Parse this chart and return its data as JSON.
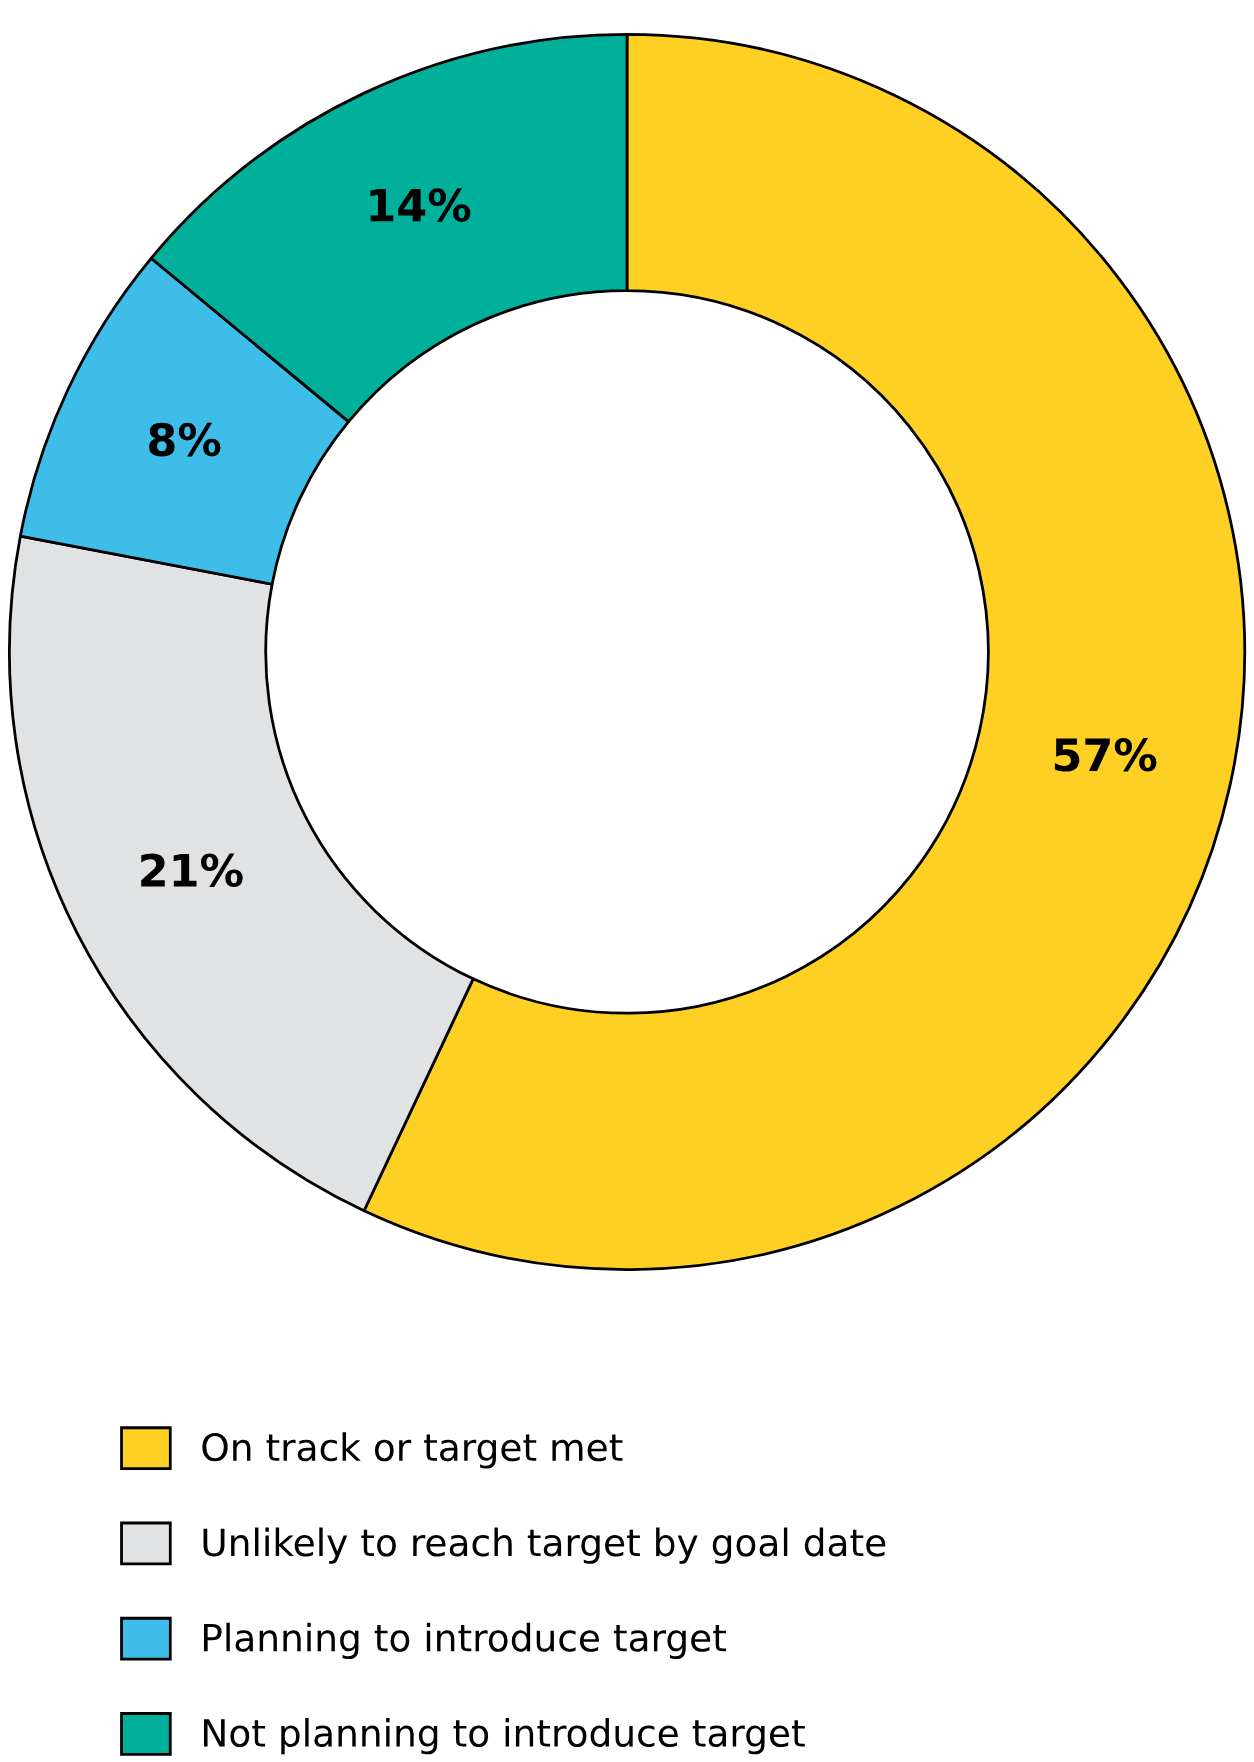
{
  "chart_data": {
    "type": "donut",
    "categories": [
      "On track or target met",
      "Unlikely to reach target by goal date",
      "Planning to introduce target",
      "Not planning to introduce target"
    ],
    "values": [
      57,
      21,
      8,
      14
    ],
    "colors": [
      "#fdd023",
      "#e1e2e3",
      "#3dbde8",
      "#00b09b"
    ],
    "value_labels": [
      "57%",
      "21%",
      "8%",
      "14%"
    ],
    "legend": "bottom"
  }
}
